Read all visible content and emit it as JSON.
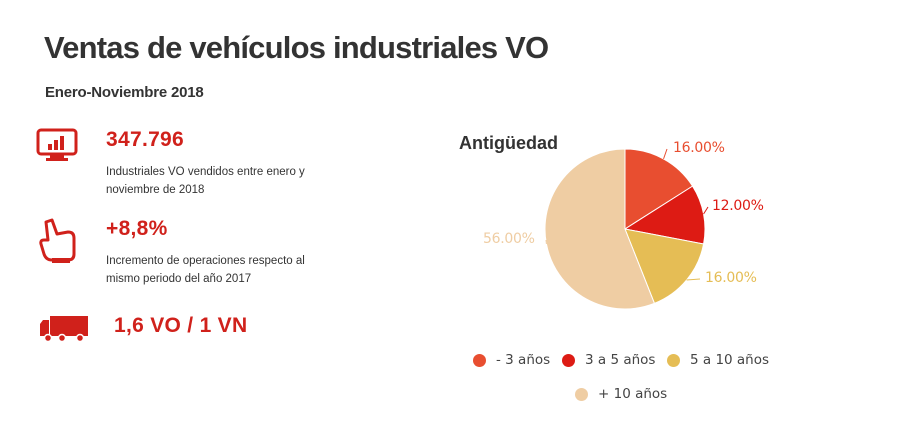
{
  "header": {
    "title": "Ventas de vehículos industriales VO",
    "subtitle": "Enero-Noviembre 2018"
  },
  "stats": [
    {
      "icon": "monitor-chart-icon",
      "value": "347.796",
      "desc_line1": "Industriales VO vendidos entre enero y",
      "desc_line2": "noviembre de 2018"
    },
    {
      "icon": "pointing-hand-icon",
      "value": "+8,8%",
      "desc_line1": "Incremento de operaciones respecto al",
      "desc_line2": "mismo periodo del año 2017"
    },
    {
      "icon": "truck-icon",
      "value": "1,6 VO / 1 VN"
    }
  ],
  "colors": {
    "accent": "#d0211b",
    "text": "#333333"
  },
  "chart_data": {
    "type": "pie",
    "title": "Antigüedad",
    "slices": [
      {
        "label": "- 3 años",
        "value": 16.0,
        "value_label": "16.00%",
        "color": "#e84e30"
      },
      {
        "label": "3 a 5 años",
        "value": 12.0,
        "value_label": "12.00%",
        "color": "#dd1b14"
      },
      {
        "label": "5 a 10 años",
        "value": 16.0,
        "value_label": "16.00%",
        "color": "#e5bd55"
      },
      {
        "label": "+ 10 años",
        "value": 56.0,
        "value_label": "56.00%",
        "color": "#efcda3"
      }
    ],
    "legend_position": "bottom"
  }
}
